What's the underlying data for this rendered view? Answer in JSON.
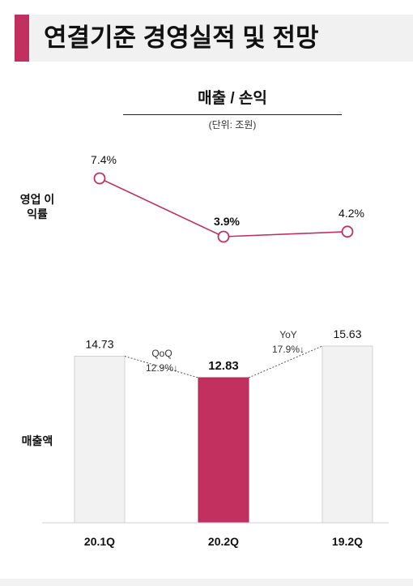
{
  "header": {
    "title": "연결기준 경영실적 및 전망",
    "accent_color": "#c1305f",
    "background_color": "#f1f1f1"
  },
  "chart_data": {
    "type": "bar",
    "title": "매출 / 손익",
    "unit": "(단위: 조원)",
    "categories": [
      "20.1Q",
      "20.2Q",
      "19.2Q"
    ],
    "series": [
      {
        "name": "매출액",
        "values": [
          14.73,
          12.83,
          15.63
        ],
        "labels": [
          "14.73",
          "12.83",
          "15.63"
        ],
        "highlight_index": 1,
        "bar_color": "#f2f2f2",
        "highlight_color": "#c1305f"
      },
      {
        "name": "영업 이익률",
        "type": "line",
        "values": [
          7.4,
          3.9,
          4.2
        ],
        "labels": [
          "7.4%",
          "3.9%",
          "4.2%"
        ],
        "color": "#c1305f"
      }
    ],
    "annotations": [
      {
        "name": "QoQ",
        "text": "QoQ",
        "value": "12.9%↓",
        "from": "20.1Q",
        "to": "20.2Q"
      },
      {
        "name": "YoY",
        "text": "YoY",
        "value": "17.9%↓",
        "from": "20.2Q",
        "to": "19.2Q"
      }
    ],
    "grid": false
  }
}
